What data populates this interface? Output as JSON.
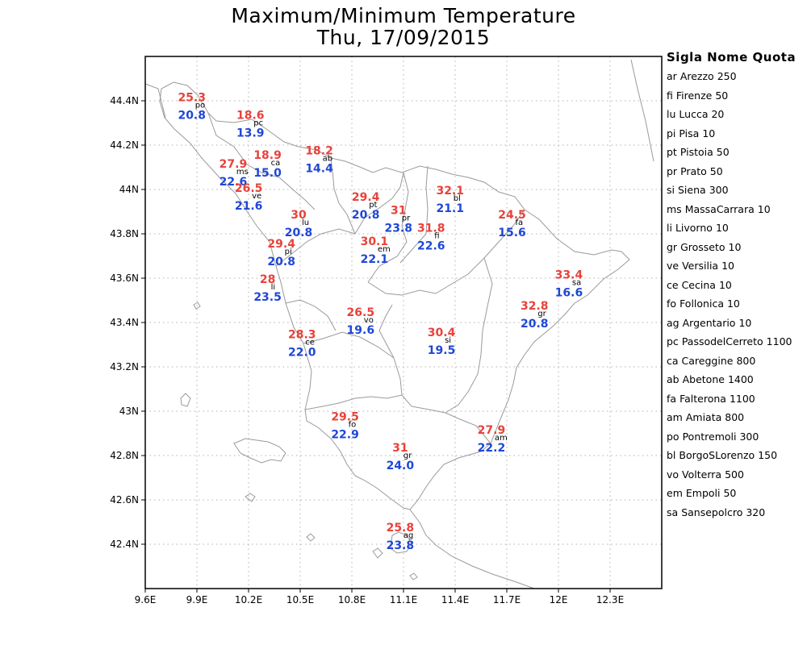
{
  "header": {
    "title_line1": "Maximum/Minimum Temperature",
    "title_line2": "Thu, 17/09/2015"
  },
  "axes": {
    "x_ticks": [
      "9.6E",
      "9.9E",
      "10.2E",
      "10.5E",
      "10.8E",
      "11.1E",
      "11.4E",
      "11.7E",
      "12E",
      "12.3E"
    ],
    "y_ticks": [
      "44.4N",
      "44.2N",
      "44N",
      "43.8N",
      "43.6N",
      "43.4N",
      "43.2N",
      "43N",
      "42.8N",
      "42.6N",
      "42.4N"
    ],
    "x_values": [
      9.6,
      9.9,
      10.2,
      10.5,
      10.8,
      11.1,
      11.4,
      11.7,
      12.0,
      12.3
    ],
    "y_values": [
      44.4,
      44.2,
      44.0,
      43.8,
      43.6,
      43.4,
      43.2,
      43.0,
      42.8,
      42.6,
      42.4
    ],
    "lon_range": [
      9.6,
      12.6
    ],
    "lat_range": [
      42.2,
      44.6
    ],
    "grid": "dotted"
  },
  "colors": {
    "tmax": "#e8423b",
    "tmin": "#1f47d6",
    "coast": "#9a9a9a",
    "frame": "#000000"
  },
  "legend": {
    "title": "Sigla Nome Quota",
    "rows": [
      {
        "code": "ar",
        "name": "Arezzo",
        "quota": "250"
      },
      {
        "code": "fi",
        "name": "Firenze",
        "quota": "50"
      },
      {
        "code": "lu",
        "name": "Lucca",
        "quota": "20"
      },
      {
        "code": "pi",
        "name": "Pisa",
        "quota": "10"
      },
      {
        "code": "pt",
        "name": "Pistoia",
        "quota": "50"
      },
      {
        "code": "pr",
        "name": "Prato",
        "quota": "50"
      },
      {
        "code": "si",
        "name": "Siena",
        "quota": "300"
      },
      {
        "code": "ms",
        "name": "MassaCarrara",
        "quota": "10"
      },
      {
        "code": "li",
        "name": "Livorno",
        "quota": "10"
      },
      {
        "code": "gr",
        "name": "Grosseto",
        "quota": "10"
      },
      {
        "code": "ve",
        "name": "Versilia",
        "quota": "10"
      },
      {
        "code": "ce",
        "name": "Cecina",
        "quota": "10"
      },
      {
        "code": "fo",
        "name": "Follonica",
        "quota": "10"
      },
      {
        "code": "ag",
        "name": "Argentario",
        "quota": "10"
      },
      {
        "code": "pc",
        "name": "PassodelCerreto",
        "quota": "1100"
      },
      {
        "code": "ca",
        "name": "Careggine",
        "quota": "800"
      },
      {
        "code": "ab",
        "name": "Abetone",
        "quota": "1400"
      },
      {
        "code": "fa",
        "name": "Falterona",
        "quota": "1100"
      },
      {
        "code": "am",
        "name": "Amiata",
        "quota": "800"
      },
      {
        "code": "po",
        "name": "Pontremoli",
        "quota": "300"
      },
      {
        "code": "bl",
        "name": "BorgoSLorenzo",
        "quota": "150"
      },
      {
        "code": "vo",
        "name": "Volterra",
        "quota": "500"
      },
      {
        "code": "em",
        "name": "Empoli",
        "quota": "50"
      },
      {
        "code": "sa",
        "name": "Sansepolcro",
        "quota": "320"
      }
    ]
  },
  "stations": [
    {
      "code": "po",
      "lon": 9.88,
      "lat": 44.37,
      "tmax": "25.3",
      "tmin": "20.8"
    },
    {
      "code": "pc",
      "lon": 10.22,
      "lat": 44.29,
      "tmax": "18.6",
      "tmin": "13.9"
    },
    {
      "code": "ca",
      "lon": 10.32,
      "lat": 44.11,
      "tmax": "18.9",
      "tmin": "15.0"
    },
    {
      "code": "ab",
      "lon": 10.62,
      "lat": 44.13,
      "tmax": "18.2",
      "tmin": "14.4"
    },
    {
      "code": "ms",
      "lon": 10.12,
      "lat": 44.07,
      "tmax": "27.9",
      "tmin": "22.6"
    },
    {
      "code": "ve",
      "lon": 10.21,
      "lat": 43.96,
      "tmax": "26.5",
      "tmin": "21.6"
    },
    {
      "code": "pt",
      "lon": 10.89,
      "lat": 43.92,
      "tmax": "29.4",
      "tmin": "20.8"
    },
    {
      "code": "pr",
      "lon": 11.08,
      "lat": 43.86,
      "tmax": "31",
      "tmin": "23.8"
    },
    {
      "code": "bl",
      "lon": 11.38,
      "lat": 43.95,
      "tmax": "32.1",
      "tmin": "21.1"
    },
    {
      "code": "fa",
      "lon": 11.74,
      "lat": 43.84,
      "tmax": "24.5",
      "tmin": "15.6"
    },
    {
      "code": "lu",
      "lon": 10.5,
      "lat": 43.84,
      "tmax": "30",
      "tmin": "20.8"
    },
    {
      "code": "fi",
      "lon": 11.27,
      "lat": 43.78,
      "tmax": "31.8",
      "tmin": "22.6"
    },
    {
      "code": "em",
      "lon": 10.94,
      "lat": 43.72,
      "tmax": "30.1",
      "tmin": "22.1"
    },
    {
      "code": "pi",
      "lon": 10.4,
      "lat": 43.71,
      "tmax": "29.4",
      "tmin": "20.8"
    },
    {
      "code": "li",
      "lon": 10.32,
      "lat": 43.55,
      "tmax": "28",
      "tmin": "23.5"
    },
    {
      "code": "sa",
      "lon": 12.07,
      "lat": 43.57,
      "tmax": "33.4",
      "tmin": "16.6"
    },
    {
      "code": "vo",
      "lon": 10.86,
      "lat": 43.4,
      "tmax": "26.5",
      "tmin": "19.6"
    },
    {
      "code": "gr",
      "lon": 11.87,
      "lat": 43.43,
      "tmax": "32.8",
      "tmin": "20.8"
    },
    {
      "code": "si",
      "lon": 11.33,
      "lat": 43.31,
      "tmax": "30.4",
      "tmin": "19.5"
    },
    {
      "code": "ce",
      "lon": 10.52,
      "lat": 43.3,
      "tmax": "28.3",
      "tmin": "22.0"
    },
    {
      "code": "fo",
      "lon": 10.77,
      "lat": 42.93,
      "tmax": "29.5",
      "tmin": "22.9"
    },
    {
      "code": "am",
      "lon": 11.62,
      "lat": 42.87,
      "tmax": "27.9",
      "tmin": "22.2"
    },
    {
      "code": "gr",
      "lon": 11.09,
      "lat": 42.79,
      "tmax": "31",
      "tmin": "24.0"
    },
    {
      "code": "ag",
      "lon": 11.09,
      "lat": 42.43,
      "tmax": "25.8",
      "tmin": "23.8"
    }
  ]
}
